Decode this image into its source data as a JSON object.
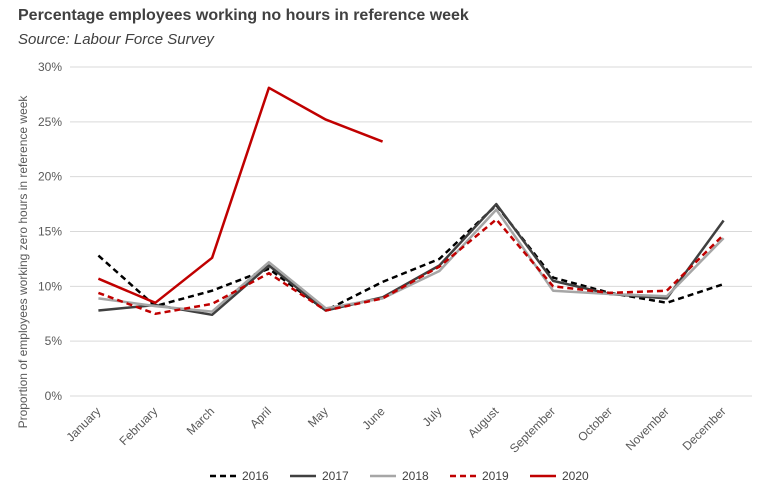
{
  "title": "Percentage employees working no hours in reference week",
  "subtitle": "Source: Labour Force Survey",
  "chart_data": {
    "type": "line",
    "title": "Percentage employees working no hours in reference week",
    "subtitle": "Source: Labour Force Survey",
    "xlabel": "",
    "ylabel": "Proportion of employees working zero hours in reference week",
    "ylim": [
      0,
      30
    ],
    "yticks": [
      "0%",
      "5%",
      "10%",
      "15%",
      "20%",
      "25%",
      "30%"
    ],
    "grid": true,
    "legend_position": "bottom",
    "categories": [
      "January",
      "February",
      "March",
      "April",
      "May",
      "June",
      "July",
      "August",
      "September",
      "October",
      "November",
      "December"
    ],
    "series": [
      {
        "name": "2016",
        "color": "#000000",
        "style": "dashed",
        "width": 2.5,
        "values": [
          12.8,
          8.2,
          9.6,
          11.6,
          7.8,
          10.4,
          12.5,
          17.4,
          10.8,
          9.4,
          8.5,
          10.2
        ]
      },
      {
        "name": "2017",
        "color": "#404040",
        "style": "solid",
        "width": 2.5,
        "values": [
          7.8,
          8.3,
          7.4,
          11.9,
          7.8,
          9.0,
          11.9,
          17.5,
          10.5,
          9.3,
          8.9,
          16.0
        ]
      },
      {
        "name": "2018",
        "color": "#a6a6a6",
        "style": "solid",
        "width": 2.5,
        "values": [
          8.9,
          8.2,
          7.7,
          12.2,
          8.0,
          8.9,
          11.4,
          17.0,
          9.6,
          9.3,
          9.1,
          14.4
        ]
      },
      {
        "name": "2019",
        "color": "#c00000",
        "style": "dashed",
        "width": 2.5,
        "values": [
          9.4,
          7.5,
          8.4,
          11.2,
          7.8,
          8.9,
          11.8,
          16.1,
          10.0,
          9.4,
          9.6,
          14.7
        ]
      },
      {
        "name": "2020",
        "color": "#c00000",
        "style": "solid",
        "width": 2.5,
        "values": [
          10.7,
          8.5,
          12.6,
          28.1,
          25.2,
          23.2,
          null,
          null,
          null,
          null,
          null,
          null
        ]
      }
    ]
  }
}
